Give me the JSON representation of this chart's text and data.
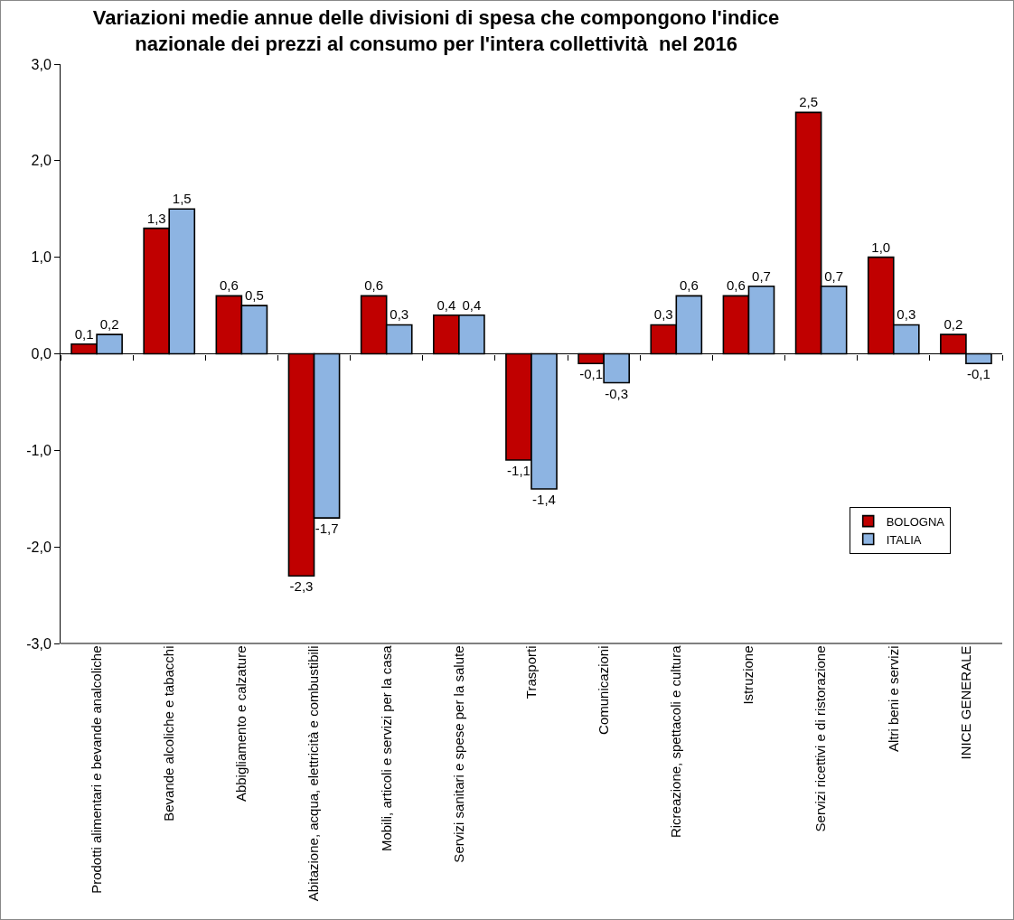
{
  "chart_data": {
    "type": "bar",
    "title": "Variazioni medie annue delle divisioni di spesa che compongono l'indice nazionale dei prezzi al consumo per l'intera collettività  nel 2016",
    "categories": [
      "Prodotti alimentari e bevande analcoliche",
      "Bevande alcoliche e tabacchi",
      "Abbigliamento e calzature",
      "Abitazione, acqua, elettricità e combustibili",
      "Mobili, articoli e servizi per la casa",
      "Servizi sanitari e spese per la salute",
      "Trasporti",
      "Comunicazioni",
      "Ricreazione, spettacoli e cultura",
      "Istruzione",
      "Servizi ricettivi e di ristorazione",
      "Altri beni e servizi",
      "INICE GENERALE"
    ],
    "series": [
      {
        "name": "BOLOGNA",
        "color": "#c00000",
        "values": [
          0.1,
          1.3,
          0.6,
          -2.3,
          0.6,
          0.4,
          -1.1,
          -0.1,
          0.3,
          0.6,
          2.5,
          1.0,
          0.2
        ],
        "value_labels": [
          "0,1",
          "1,3",
          "0,6",
          "-2,3",
          "0,6",
          "0,4",
          "-1,1",
          "-0,1",
          "0,3",
          "0,6",
          "2,5",
          "1,0",
          "0,2"
        ]
      },
      {
        "name": "ITALIA",
        "color": "#8db4e2",
        "values": [
          0.2,
          1.5,
          0.5,
          -1.7,
          0.3,
          0.4,
          -1.4,
          -0.3,
          0.6,
          0.7,
          0.7,
          0.3,
          -0.1
        ],
        "value_labels": [
          "0,2",
          "1,5",
          "0,5",
          "-1,7",
          "0,3",
          "0,4",
          "-1,4",
          "-0,3",
          "0,6",
          "0,7",
          "0,7",
          "0,3",
          "-0,1"
        ]
      }
    ],
    "ylim": [
      -3,
      3
    ],
    "yticks": [
      {
        "value": -3,
        "label": "-3,0"
      },
      {
        "value": -2,
        "label": "-2,0"
      },
      {
        "value": -1,
        "label": "-1,0"
      },
      {
        "value": 0,
        "label": "0,0"
      },
      {
        "value": 1,
        "label": "1,0"
      },
      {
        "value": 2,
        "label": "2,0"
      },
      {
        "value": 3,
        "label": "3,0"
      }
    ],
    "ref_lines": [
      {
        "axis": "y",
        "value": 0,
        "color": "#000000"
      }
    ],
    "grid": false,
    "legend": "bottom right"
  }
}
